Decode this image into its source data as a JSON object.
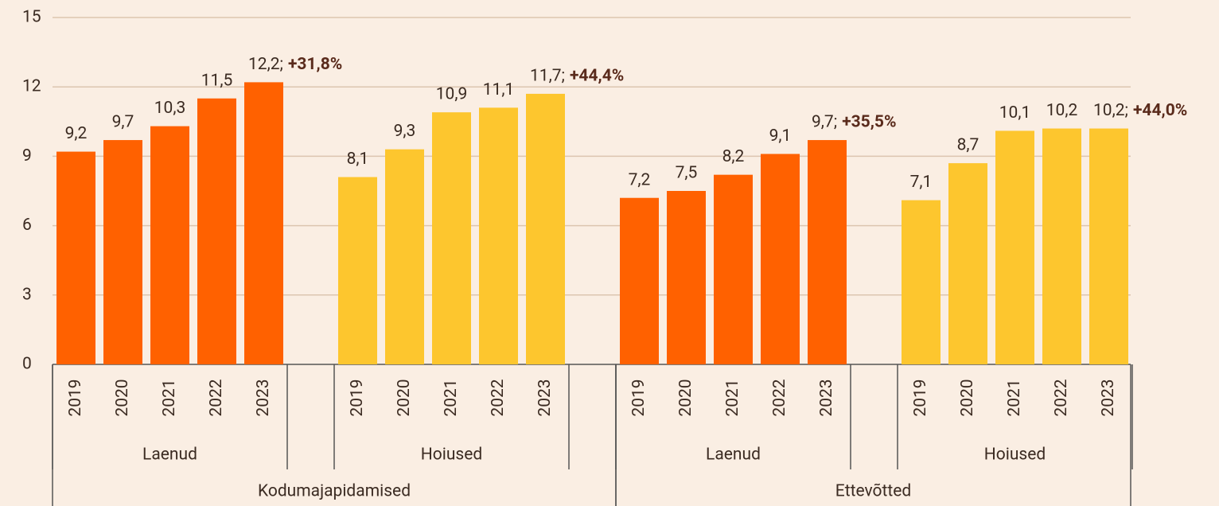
{
  "chart_data": {
    "type": "bar",
    "categories": [
      "2019",
      "2020",
      "2021",
      "2022",
      "2023",
      null,
      "2019",
      "2020",
      "2021",
      "2022",
      "2023",
      null,
      "2019",
      "2020",
      "2021",
      "2022",
      "2023",
      null,
      "2019",
      "2020",
      "2021",
      "2022",
      "2023"
    ],
    "values": [
      9.2,
      9.7,
      10.3,
      11.5,
      12.2,
      null,
      8.1,
      9.3,
      10.9,
      11.1,
      11.7,
      null,
      7.2,
      7.5,
      8.2,
      9.1,
      9.7,
      null,
      7.1,
      8.7,
      10.1,
      10.2,
      10.2
    ],
    "value_labels": [
      "9,2",
      "9,7",
      "10,3",
      "11,5",
      "12,2;",
      null,
      "8,1",
      "9,3",
      "10,9",
      "11,1",
      "11,7;",
      null,
      "7,2",
      "7,5",
      "8,2",
      "9,1",
      "9,7;",
      null,
      "7,1",
      "8,7",
      "10,1",
      "10,2",
      "10,2;"
    ],
    "annotations": [
      "+31,8%",
      "+44,4%",
      "+35,5%",
      "+44,0%"
    ],
    "groups": [
      "Laenud",
      "Hoiused",
      "Laenud",
      "Hoiused"
    ],
    "group_colors": [
      "#ff6100",
      "#fdc62e",
      "#ff6100",
      "#fdc62e"
    ],
    "supergroups": [
      "Kodumajapidamised",
      "Ettevõtted"
    ],
    "ylim": [
      0,
      15
    ],
    "yticks": [
      0,
      3,
      6,
      9,
      12,
      15
    ],
    "grid": true
  }
}
